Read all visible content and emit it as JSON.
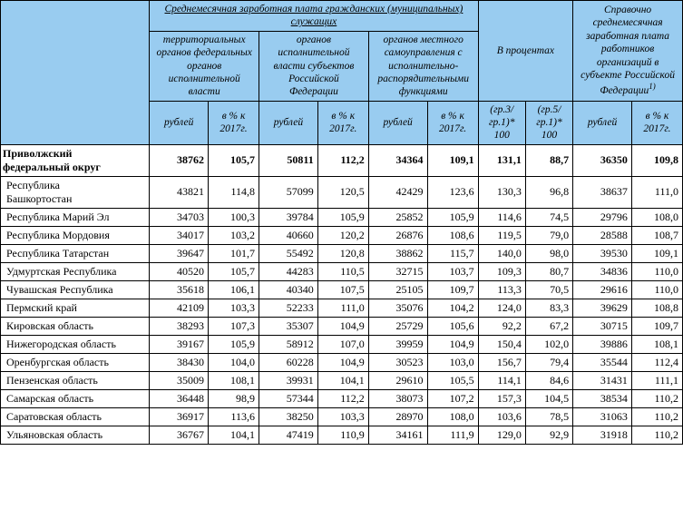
{
  "header": {
    "group_salary": "Среднемесячная заработная плата гражданских (муниципальных) служащих",
    "group_percent": "В процентах",
    "group_reference": "Справочно",
    "group_reference_sub": "среднемесячная заработная плата работников организаций в субъекте Российской Федерации",
    "group_reference_sup": "1)",
    "sub_terr": "территориальных органов федеральных органов исполнительной власти",
    "sub_exec": "органов исполнительной власти субъектов Российской Федерации",
    "sub_local": "органов местного самоуправления с исполнительно-распорядительными функциями",
    "h_rub": "рублей",
    "h_pct": "в % к 2017г.",
    "h_p1": "(гр.3/ гр.1)* 100",
    "h_p2": "(гр.5/ гр.1)* 100"
  },
  "summary": {
    "name": "Приволжский\n федеральный округ",
    "v": [
      "38762",
      "105,7",
      "50811",
      "112,2",
      "34364",
      "109,1",
      "131,1",
      "88,7",
      "36350",
      "109,8"
    ]
  },
  "rows": [
    {
      "name": "Республика\n Башкортостан",
      "v": [
        "43821",
        "114,8",
        "57099",
        "120,5",
        "42429",
        "123,6",
        "130,3",
        "96,8",
        "38637",
        "111,0"
      ]
    },
    {
      "name": "Республика Марий Эл",
      "v": [
        "34703",
        "100,3",
        "39784",
        "105,9",
        "25852",
        "105,9",
        "114,6",
        "74,5",
        "29796",
        "108,0"
      ]
    },
    {
      "name": "Республика Мордовия",
      "v": [
        "34017",
        "103,2",
        "40660",
        "120,2",
        "26876",
        "108,6",
        "119,5",
        "79,0",
        "28588",
        "108,7"
      ]
    },
    {
      "name": "Республика Татарстан",
      "v": [
        "39647",
        "101,7",
        "55492",
        "120,8",
        "38862",
        "115,7",
        "140,0",
        "98,0",
        "39530",
        "109,1"
      ]
    },
    {
      "name": "Удмуртская Республика",
      "v": [
        "40520",
        "105,7",
        "44283",
        "110,5",
        "32715",
        "103,7",
        "109,3",
        "80,7",
        "34836",
        "110,0"
      ]
    },
    {
      "name": "Чувашская Республика",
      "v": [
        "35618",
        "106,1",
        "40340",
        "107,5",
        "25105",
        "109,7",
        "113,3",
        "70,5",
        "29616",
        "110,0"
      ]
    },
    {
      "name": "Пермский край",
      "v": [
        "42109",
        "103,3",
        "52233",
        "111,0",
        "35076",
        "104,2",
        "124,0",
        "83,3",
        "39629",
        "108,8"
      ]
    },
    {
      "name": "Кировская область",
      "v": [
        "38293",
        "107,3",
        "35307",
        "104,9",
        "25729",
        "105,6",
        "92,2",
        "67,2",
        "30715",
        "109,7"
      ]
    },
    {
      "name": "Нижегородская область",
      "v": [
        "39167",
        "105,9",
        "58912",
        "107,0",
        "39959",
        "104,9",
        "150,4",
        "102,0",
        "39886",
        "108,1"
      ]
    },
    {
      "name": "Оренбургская область",
      "v": [
        "38430",
        "104,0",
        "60228",
        "104,9",
        "30523",
        "103,0",
        "156,7",
        "79,4",
        "35544",
        "112,4"
      ]
    },
    {
      "name": "Пензенская область",
      "v": [
        "35009",
        "108,1",
        "39931",
        "104,1",
        "29610",
        "105,5",
        "114,1",
        "84,6",
        "31431",
        "111,1"
      ]
    },
    {
      "name": "Самарская область",
      "v": [
        "36448",
        "98,9",
        "57344",
        "112,2",
        "38073",
        "107,2",
        "157,3",
        "104,5",
        "38534",
        "110,2"
      ]
    },
    {
      "name": "Саратовская область",
      "v": [
        "36917",
        "113,6",
        "38250",
        "103,3",
        "28970",
        "108,0",
        "103,6",
        "78,5",
        "31063",
        "110,2"
      ]
    },
    {
      "name": "Ульяновская область",
      "v": [
        "36767",
        "104,1",
        "47419",
        "110,9",
        "34161",
        "111,9",
        "129,0",
        "92,9",
        "31918",
        "110,2"
      ]
    }
  ]
}
